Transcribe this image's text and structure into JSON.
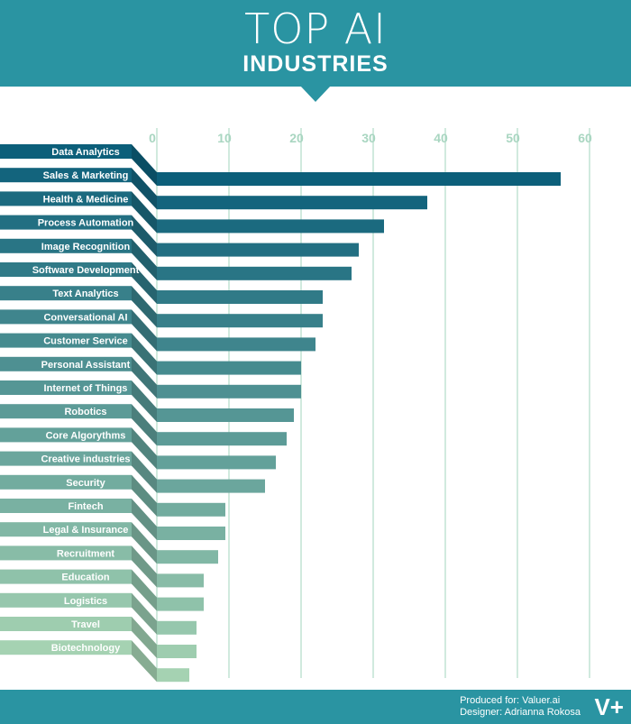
{
  "header": {
    "title_line1": "TOP AI",
    "title_line2": "INDUSTRIES"
  },
  "footer": {
    "produced_for": "Produced for: Valuer.ai",
    "designer": "Designer: Adrianna Rokosa",
    "logo": "V+"
  },
  "colors": {
    "dark": "#0c5f7a",
    "light": "#a5d2b2",
    "grid": "#b2dcc8",
    "header": "#2a94a2"
  },
  "chart_data": {
    "type": "bar",
    "orientation": "horizontal",
    "title": "TOP AI INDUSTRIES",
    "xlabel": "",
    "ylabel": "",
    "xlim": [
      0,
      60
    ],
    "xticks": [
      "0",
      "10",
      "20",
      "30",
      "40",
      "50",
      "60"
    ],
    "grid": true,
    "categories": [
      "Data Analytics",
      "Sales & Marketing",
      "Health & Medicine",
      "Process Automation",
      "Image Recognition",
      "Software Development",
      "Text Analytics",
      "Conversational AI",
      "Customer Service",
      "Personal Assistant",
      "Internet of Things",
      "Robotics",
      "Core Algorythms",
      "Creative industries",
      "Security",
      "Fintech",
      "Legal & Insurance",
      "Recruitment",
      "Education",
      "Logistics",
      "Travel",
      "Biotechnology"
    ],
    "values": [
      56,
      37.5,
      31.5,
      28,
      27,
      23,
      23,
      22,
      20,
      20,
      19,
      18,
      16.5,
      15,
      9.5,
      9.5,
      8.5,
      6.5,
      6.5,
      5.5,
      5.5,
      4.5
    ]
  }
}
